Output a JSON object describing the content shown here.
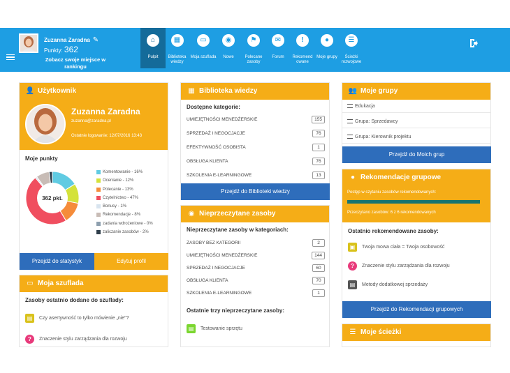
{
  "topbar": {
    "user_name": "Zuzanna Zaradna",
    "points_label": "Punkty:",
    "points_value": "362",
    "rank_link": "Zobacz swoje miejsce w rankingu",
    "nav": [
      {
        "label": "Pulpit",
        "icon": "home-icon"
      },
      {
        "label": "Biblioteka wiedzy",
        "icon": "grid-icon"
      },
      {
        "label": "Moja szuflada",
        "icon": "drawer-icon"
      },
      {
        "label": "Nowe",
        "icon": "eye-icon"
      },
      {
        "label": "Polecane zasoby",
        "icon": "flag-icon"
      },
      {
        "label": "Forum",
        "icon": "chat-icon"
      },
      {
        "label": "Rekomend owane",
        "icon": "exclamation-icon"
      },
      {
        "label": "Moje grupy",
        "icon": "users-icon"
      },
      {
        "label": "Ścieżki rozwojowe",
        "icon": "list-icon"
      }
    ],
    "logout_icon": "logout-icon"
  },
  "user_panel": {
    "title": "Użytkownik",
    "name": "Zuzanna Zaradna",
    "email": "zuzanna@zaradna.pl",
    "last_login": "Ostatnie logowanie: 12/07/2016 13:43",
    "points_title": "Moje punkty",
    "donut_center": "362 pkt.",
    "stats_button": "Przejdź do statystyk",
    "edit_button": "Edytuj profil"
  },
  "chart_data": {
    "type": "pie",
    "title": "Moje punkty",
    "series": [
      {
        "name": "Komentowanie - 16%",
        "value": 16,
        "color": "#60cbe2"
      },
      {
        "name": "Ocenianie - 12%",
        "value": 12,
        "color": "#d4e23a"
      },
      {
        "name": "Polecanie - 13%",
        "value": 13,
        "color": "#f58c3a"
      },
      {
        "name": "Czytelnictwo - 47%",
        "value": 47,
        "color": "#f04e5f"
      },
      {
        "name": "Bonusy - 1%",
        "value": 1,
        "color": "#d8e4ef"
      },
      {
        "name": "Rekomendacje - 8%",
        "value": 8,
        "color": "#c8bcb6"
      },
      {
        "name": "zadania wdrożeniowe - 0%",
        "value": 0,
        "color": "#8d9fae"
      },
      {
        "name": "zaliczanie zasobów - 2%",
        "value": 2,
        "color": "#2f3e4b"
      }
    ]
  },
  "drawer_panel": {
    "title": "Moja szuflada",
    "subtitle": "Zasoby ostatnio dodane do szuflady:",
    "items": [
      {
        "label": "Czy asertywność to tylko mówienie „nie\"?",
        "icon": "document-icon",
        "color": "#d9c21c"
      },
      {
        "label": "Znaczenie stylu zarządzania dla rozwoju",
        "icon": "question-icon",
        "color": "#e83a7b"
      }
    ]
  },
  "library_panel": {
    "title": "Biblioteka wiedzy",
    "subtitle": "Dostępne kategorie:",
    "categories": [
      {
        "label": "UMIEJĘTNOŚCI MENEDŻERSKIE",
        "count": "155"
      },
      {
        "label": "SPRZEDAŻ I NEGOCJACJE",
        "count": "76"
      },
      {
        "label": "EFEKTYWNOŚĆ OSOBISTA",
        "count": "1"
      },
      {
        "label": "OBSŁUGA KLIENTA",
        "count": "76"
      },
      {
        "label": "SZKOLENIA E-LEARNINGOWE",
        "count": "13"
      }
    ],
    "button": "Przejdź do Biblioteki wiedzy"
  },
  "unread_panel": {
    "title": "Nieprzeczytane zasoby",
    "subtitle": "Nieprzeczytane zasoby w kategoriach:",
    "categories": [
      {
        "label": "ZASOBY BEZ KATEGORII",
        "count": "2"
      },
      {
        "label": "UMIEJĘTNOŚCI MENEDŻERSKIE",
        "count": "144"
      },
      {
        "label": "SPRZEDAŻ I NEGOCJACJE",
        "count": "60"
      },
      {
        "label": "OBSŁUGA KLIENTA",
        "count": "70"
      },
      {
        "label": "SZKOLENIA E-LEARNINGOWE",
        "count": "1"
      }
    ],
    "subtitle2": "Ostatnie trzy nieprzeczytane zasoby:",
    "items": [
      {
        "label": "Testowanie sprzętu",
        "icon": "document-icon",
        "color": "#7bd62f"
      }
    ]
  },
  "groups_panel": {
    "title": "Moje grupy",
    "groups": [
      "Edukacja",
      "Grupa: Sprzedawcy",
      "Grupa: Kierownik projektu"
    ],
    "button": "Przejdź do Moich grup"
  },
  "rec_panel": {
    "title": "Rekomendacje grupowe",
    "progress_label": "Postęp w czytaniu zasobów rekomendowanych:",
    "progress_value": 1.0,
    "read_info": "Przeczytano zasobów: 6 z 6 rekomendowanych",
    "subtitle": "Ostatnio rekomendowane zasoby:",
    "items": [
      {
        "label": "Twoja mowa ciała = Twoja osobowość",
        "icon": "slides-icon",
        "color": "#d9c21c"
      },
      {
        "label": "Znaczenie stylu zarządzania dla rozwoju",
        "icon": "question-icon",
        "color": "#e83a7b"
      },
      {
        "label": "Metody dodatkowej sprzedaży",
        "icon": "document-icon",
        "color": "#555555"
      }
    ],
    "button": "Przejdź do Rekomendacji grupowych"
  },
  "paths_panel": {
    "title": "Moje ścieżki"
  }
}
